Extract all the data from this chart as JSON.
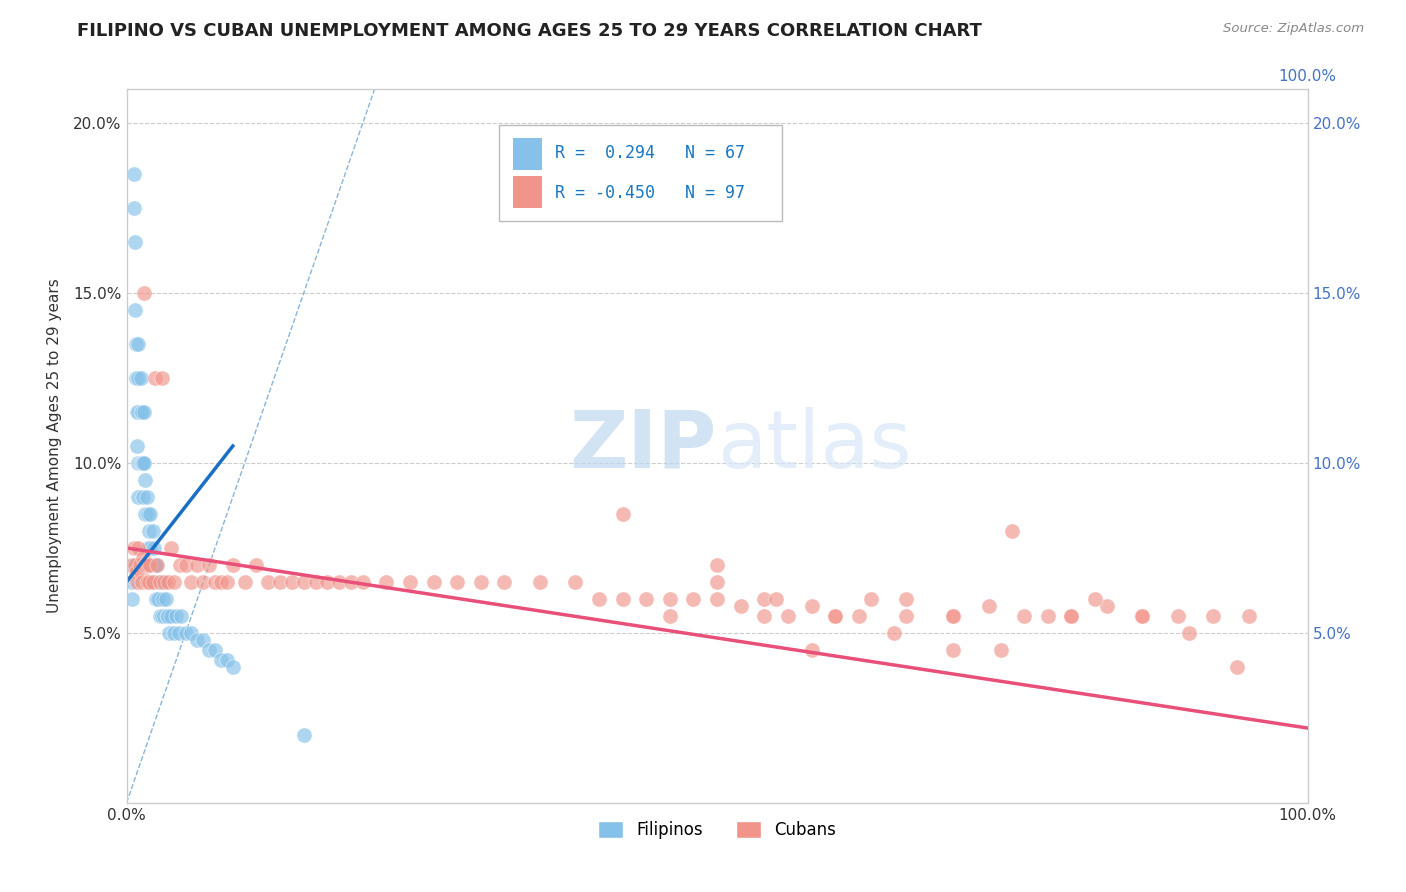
{
  "title": "FILIPINO VS CUBAN UNEMPLOYMENT AMONG AGES 25 TO 29 YEARS CORRELATION CHART",
  "source": "Source: ZipAtlas.com",
  "ylabel": "Unemployment Among Ages 25 to 29 years",
  "xlim": [
    0.0,
    1.0
  ],
  "ylim": [
    0.0,
    0.21
  ],
  "xticks": [
    0.0,
    1.0
  ],
  "xtick_labels": [
    "0.0%",
    "100.0%"
  ],
  "yticks": [
    0.0,
    0.05,
    0.1,
    0.15,
    0.2
  ],
  "ytick_labels_left": [
    "",
    "5.0%",
    "10.0%",
    "15.0%",
    "20.0%"
  ],
  "ytick_labels_right": [
    "",
    "5.0%",
    "10.0%",
    "15.0%",
    "20.0%"
  ],
  "filipino_color": "#85c1e9",
  "cuban_color": "#f1948a",
  "filipino_R": 0.294,
  "filipino_N": 67,
  "cuban_R": -0.45,
  "cuban_N": 97,
  "background_color": "#ffffff",
  "grid_color": "#cccccc",
  "watermark_zip": "ZIP",
  "watermark_atlas": "atlas",
  "watermark_color": "#c8dff0",
  "title_fontsize": 13,
  "axis_fontsize": 11,
  "tick_fontsize": 11,
  "legend_fontsize": 12,
  "filipino_scatter_x": [
    0.005,
    0.005,
    0.005,
    0.006,
    0.006,
    0.007,
    0.007,
    0.008,
    0.008,
    0.009,
    0.009,
    0.01,
    0.01,
    0.01,
    0.01,
    0.01,
    0.012,
    0.012,
    0.012,
    0.013,
    0.013,
    0.014,
    0.014,
    0.015,
    0.015,
    0.016,
    0.016,
    0.017,
    0.018,
    0.018,
    0.019,
    0.02,
    0.02,
    0.02,
    0.022,
    0.022,
    0.023,
    0.024,
    0.025,
    0.025,
    0.026,
    0.027,
    0.028,
    0.028,
    0.03,
    0.03,
    0.031,
    0.032,
    0.033,
    0.034,
    0.035,
    0.036,
    0.038,
    0.04,
    0.042,
    0.044,
    0.046,
    0.05,
    0.055,
    0.06,
    0.065,
    0.07,
    0.075,
    0.08,
    0.085,
    0.09,
    0.15
  ],
  "filipino_scatter_y": [
    0.07,
    0.065,
    0.06,
    0.185,
    0.175,
    0.165,
    0.145,
    0.135,
    0.125,
    0.115,
    0.105,
    0.135,
    0.125,
    0.115,
    0.1,
    0.09,
    0.125,
    0.115,
    0.1,
    0.115,
    0.1,
    0.1,
    0.09,
    0.115,
    0.1,
    0.095,
    0.085,
    0.09,
    0.085,
    0.075,
    0.08,
    0.085,
    0.075,
    0.065,
    0.08,
    0.07,
    0.075,
    0.07,
    0.07,
    0.06,
    0.065,
    0.06,
    0.065,
    0.055,
    0.065,
    0.055,
    0.06,
    0.055,
    0.06,
    0.055,
    0.055,
    0.05,
    0.055,
    0.05,
    0.055,
    0.05,
    0.055,
    0.05,
    0.05,
    0.048,
    0.048,
    0.045,
    0.045,
    0.042,
    0.042,
    0.04,
    0.02
  ],
  "cuban_scatter_x": [
    0.005,
    0.006,
    0.007,
    0.008,
    0.009,
    0.01,
    0.011,
    0.012,
    0.013,
    0.014,
    0.015,
    0.016,
    0.017,
    0.018,
    0.019,
    0.02,
    0.022,
    0.024,
    0.026,
    0.028,
    0.03,
    0.032,
    0.035,
    0.038,
    0.04,
    0.045,
    0.05,
    0.055,
    0.06,
    0.065,
    0.07,
    0.075,
    0.08,
    0.085,
    0.09,
    0.1,
    0.11,
    0.12,
    0.13,
    0.14,
    0.15,
    0.16,
    0.17,
    0.18,
    0.19,
    0.2,
    0.22,
    0.24,
    0.26,
    0.28,
    0.3,
    0.32,
    0.35,
    0.38,
    0.4,
    0.42,
    0.44,
    0.46,
    0.48,
    0.5,
    0.52,
    0.54,
    0.56,
    0.58,
    0.6,
    0.63,
    0.66,
    0.7,
    0.73,
    0.76,
    0.8,
    0.83,
    0.86,
    0.89,
    0.92,
    0.95,
    0.42,
    0.46,
    0.5,
    0.54,
    0.58,
    0.62,
    0.66,
    0.7,
    0.74,
    0.78,
    0.82,
    0.86,
    0.9,
    0.94,
    0.5,
    0.55,
    0.6,
    0.65,
    0.7,
    0.75,
    0.8
  ],
  "cuban_scatter_y": [
    0.07,
    0.075,
    0.07,
    0.068,
    0.065,
    0.075,
    0.07,
    0.068,
    0.065,
    0.072,
    0.15,
    0.07,
    0.065,
    0.07,
    0.065,
    0.07,
    0.065,
    0.125,
    0.07,
    0.065,
    0.125,
    0.065,
    0.065,
    0.075,
    0.065,
    0.07,
    0.07,
    0.065,
    0.07,
    0.065,
    0.07,
    0.065,
    0.065,
    0.065,
    0.07,
    0.065,
    0.07,
    0.065,
    0.065,
    0.065,
    0.065,
    0.065,
    0.065,
    0.065,
    0.065,
    0.065,
    0.065,
    0.065,
    0.065,
    0.065,
    0.065,
    0.065,
    0.065,
    0.065,
    0.06,
    0.06,
    0.06,
    0.06,
    0.06,
    0.06,
    0.058,
    0.06,
    0.055,
    0.058,
    0.055,
    0.06,
    0.055,
    0.055,
    0.058,
    0.055,
    0.055,
    0.058,
    0.055,
    0.055,
    0.055,
    0.055,
    0.085,
    0.055,
    0.065,
    0.055,
    0.045,
    0.055,
    0.06,
    0.055,
    0.045,
    0.055,
    0.06,
    0.055,
    0.05,
    0.04,
    0.07,
    0.06,
    0.055,
    0.05,
    0.045,
    0.08,
    0.055
  ],
  "filipino_trend_x": [
    0.0,
    0.09
  ],
  "filipino_trend_y": [
    0.065,
    0.105
  ],
  "cuban_trend_x": [
    0.0,
    1.0
  ],
  "cuban_trend_y": [
    0.075,
    0.022
  ],
  "dashed_line_color": "#8ab4d8",
  "dashed_line_x": [
    0.0,
    1.0
  ],
  "dashed_line_y": [
    0.0,
    1.0
  ]
}
